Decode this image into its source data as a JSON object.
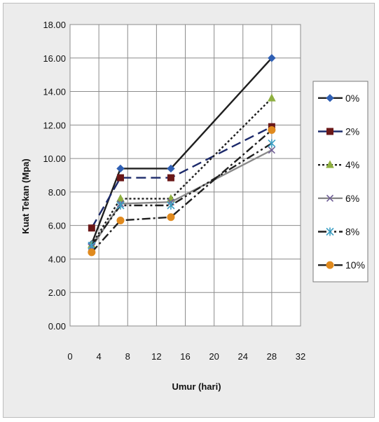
{
  "chart_data": {
    "type": "line",
    "title": "",
    "xlabel": "Umur (hari)",
    "ylabel": "Kuat Tekan  (Mpa)",
    "xlim": [
      0,
      32
    ],
    "ylim": [
      0,
      18
    ],
    "x_ticks": [
      "0",
      "4",
      "8",
      "12",
      "16",
      "20",
      "24",
      "28",
      "32"
    ],
    "y_ticks": [
      "0.00",
      "2.00",
      "4.00",
      "6.00",
      "8.00",
      "10.00",
      "12.00",
      "14.00",
      "16.00",
      "18.00"
    ],
    "grid": true,
    "legend_position": "right",
    "x": [
      3,
      7,
      14,
      28
    ],
    "series": [
      {
        "name": "0%",
        "values": [
          4.9,
          9.4,
          9.4,
          16.0
        ],
        "color": "#1f1f1f",
        "marker": "diamond",
        "marker_color": "#2f5fb3",
        "dash": "solid"
      },
      {
        "name": "2%",
        "values": [
          5.85,
          8.85,
          8.85,
          11.9
        ],
        "color": "#1c2a6b",
        "marker": "square",
        "marker_color": "#6b1818",
        "dash": "longdash"
      },
      {
        "name": "4%",
        "values": [
          4.85,
          7.6,
          7.6,
          13.6
        ],
        "color": "#1f1f1f",
        "marker": "triangle",
        "marker_color": "#8fb040",
        "dash": "dotted"
      },
      {
        "name": "6%",
        "values": [
          4.7,
          7.3,
          7.4,
          10.5
        ],
        "color": "#8a8a8a",
        "marker": "x",
        "marker_color": "#6f5e96",
        "dash": "solid"
      },
      {
        "name": "8%",
        "values": [
          4.8,
          7.2,
          7.2,
          10.9
        ],
        "color": "#1f1f1f",
        "marker": "asterisk",
        "marker_color": "#3da0c4",
        "dash": "dashdotdot"
      },
      {
        "name": "10%",
        "values": [
          4.4,
          6.3,
          6.5,
          11.7
        ],
        "color": "#1f1f1f",
        "marker": "circle",
        "marker_color": "#e08a1e",
        "dash": "dashdot"
      }
    ]
  }
}
